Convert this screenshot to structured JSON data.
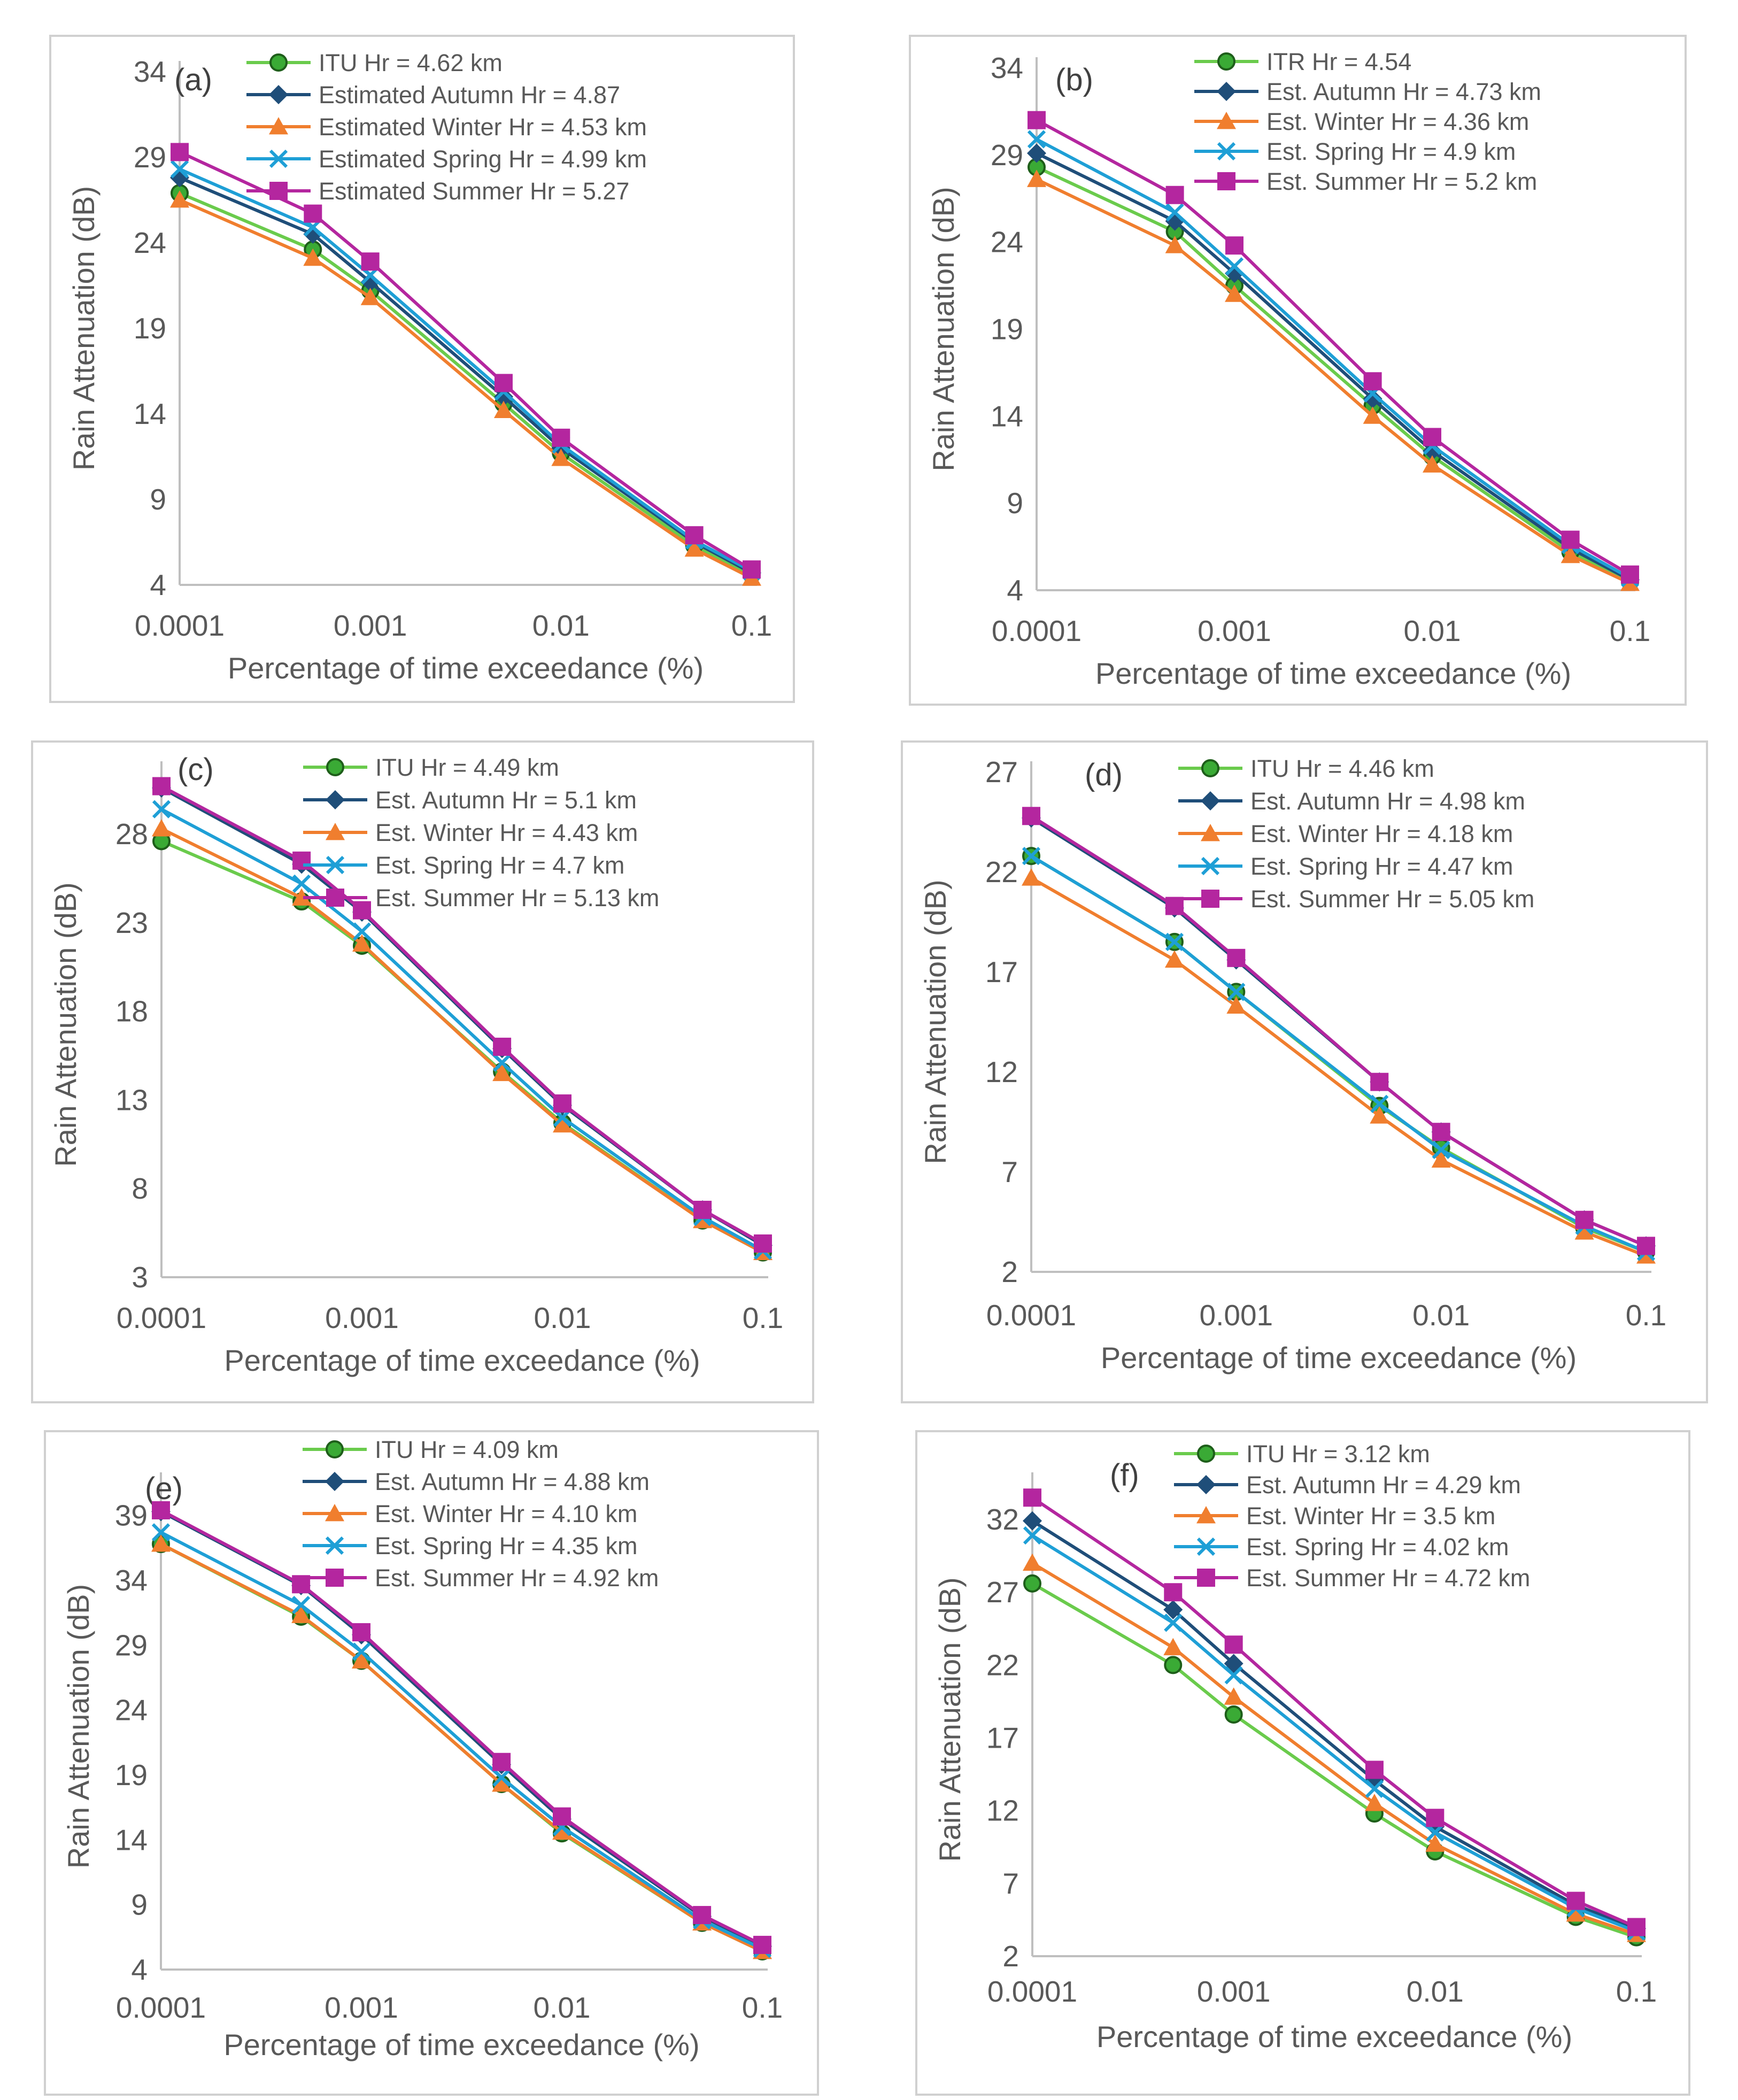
{
  "colors": {
    "ITU": "#6ACB4C",
    "Autumn": "#1F4E79",
    "Winter": "#F07E2E",
    "Spring": "#1E9FD6",
    "Summer": "#B4269F",
    "marker_itu_fill": "#3AAA35",
    "marker_itu_stroke": "#1E5E1A",
    "axis": "#bfbfbf",
    "text": "#595959"
  },
  "chart_data": [
    {
      "type": "line",
      "tag": "(a)",
      "xlabel": "Percentage of time exceedance (%)",
      "ylabel": "Rain Attenuation (dB)",
      "xscale": "log",
      "x": [
        0.0001,
        0.0005,
        0.001,
        0.005,
        0.01,
        0.05,
        0.1
      ],
      "xticks": [
        "0.0001",
        "0.001",
        "0.01",
        "0.1"
      ],
      "yticks": [
        "4",
        "9",
        "14",
        "19",
        "24",
        "29",
        "34"
      ],
      "ylim": [
        4,
        34
      ],
      "grid": false,
      "legend_position": "top-right",
      "series": [
        {
          "key": "ITU",
          "name": "ITU Hr = 4.62 km",
          "marker": "circle",
          "values": [
            26.9,
            23.6,
            21.2,
            14.6,
            11.7,
            6.3,
            4.6
          ]
        },
        {
          "key": "Autumn",
          "name": "Estimated Autumn Hr = 4.87",
          "marker": "diamond",
          "values": [
            27.8,
            24.5,
            21.7,
            15.0,
            12.0,
            6.5,
            4.7
          ]
        },
        {
          "key": "Winter",
          "name": "Estimated Winter Hr = 4.53 km",
          "marker": "triangle",
          "values": [
            26.5,
            23.1,
            20.8,
            14.2,
            11.4,
            6.1,
            4.4
          ]
        },
        {
          "key": "Spring",
          "name": "Estimated Spring Hr = 4.99 km",
          "marker": "x",
          "values": [
            28.3,
            24.9,
            22.1,
            15.3,
            12.2,
            6.6,
            4.8
          ]
        },
        {
          "key": "Summer",
          "name": "Estimated Summer Hr = 5.27",
          "marker": "square",
          "values": [
            29.3,
            25.7,
            22.9,
            15.8,
            12.6,
            6.9,
            4.9
          ]
        }
      ]
    },
    {
      "type": "line",
      "tag": "(b)",
      "xlabel": "Percentage of time exceedance (%)",
      "ylabel": "Rain Attenuation (dB)",
      "xscale": "log",
      "x": [
        0.0001,
        0.0005,
        0.001,
        0.005,
        0.01,
        0.05,
        0.1
      ],
      "xticks": [
        "0.0001",
        "0.001",
        "0.01",
        "0.1"
      ],
      "yticks": [
        "4",
        "9",
        "14",
        "19",
        "24",
        "29",
        "34"
      ],
      "ylim": [
        4,
        34
      ],
      "grid": false,
      "legend_position": "top-right",
      "series": [
        {
          "key": "ITU",
          "name": "ITR Hr = 4.54",
          "marker": "circle",
          "values": [
            28.3,
            24.6,
            21.5,
            14.6,
            11.7,
            6.2,
            4.5
          ]
        },
        {
          "key": "Autumn",
          "name": "Est. Autumn Hr = 4.73 km",
          "marker": "diamond",
          "values": [
            29.1,
            25.2,
            22.2,
            15.0,
            12.0,
            6.4,
            4.6
          ]
        },
        {
          "key": "Winter",
          "name": "Est. Winter Hr = 4.36 km",
          "marker": "triangle",
          "values": [
            27.6,
            23.8,
            21.0,
            14.0,
            11.2,
            6.0,
            4.4
          ]
        },
        {
          "key": "Spring",
          "name": "Est. Spring Hr = 4.9 km",
          "marker": "x",
          "values": [
            29.9,
            25.7,
            22.6,
            15.3,
            12.3,
            6.6,
            4.7
          ]
        },
        {
          "key": "Summer",
          "name": "Est. Summer Hr = 5.2 km",
          "marker": "square",
          "values": [
            31.0,
            26.7,
            23.8,
            16.0,
            12.8,
            6.9,
            4.9
          ]
        }
      ]
    },
    {
      "type": "line",
      "tag": "(c)",
      "xlabel": "Percentage of time exceedance (%)",
      "ylabel": "Rain Attenuation (dB)",
      "xscale": "log",
      "x": [
        0.0001,
        0.0005,
        0.001,
        0.005,
        0.01,
        0.05,
        0.1
      ],
      "xticks": [
        "0.0001",
        "0.001",
        "0.01",
        "0.1"
      ],
      "yticks": [
        "3",
        "8",
        "13",
        "18",
        "23",
        "28"
      ],
      "ylim": [
        3,
        31.5
      ],
      "grid": false,
      "legend_position": "top-right",
      "series": [
        {
          "key": "ITU",
          "name": "ITU Hr = 4.49 km",
          "marker": "circle",
          "values": [
            27.6,
            24.2,
            21.7,
            14.6,
            11.7,
            6.2,
            4.4
          ]
        },
        {
          "key": "Autumn",
          "name": "Est. Autumn Hr = 5.1 km",
          "marker": "diamond",
          "values": [
            30.6,
            26.3,
            23.6,
            15.9,
            12.7,
            6.8,
            4.8
          ]
        },
        {
          "key": "Winter",
          "name": "Est. Winter Hr = 4.43 km",
          "marker": "triangle",
          "values": [
            28.3,
            24.4,
            21.8,
            14.5,
            11.6,
            6.2,
            4.4
          ]
        },
        {
          "key": "Spring",
          "name": "Est. Spring Hr = 4.7 km",
          "marker": "x",
          "values": [
            29.4,
            25.2,
            22.5,
            15.1,
            12.0,
            6.4,
            4.5
          ]
        },
        {
          "key": "Summer",
          "name": "Est. Summer Hr = 5.13 km",
          "marker": "square",
          "values": [
            30.7,
            26.5,
            23.7,
            16.0,
            12.8,
            6.8,
            4.9
          ]
        }
      ]
    },
    {
      "type": "line",
      "tag": "(d)",
      "xlabel": "Percentage of time exceedance (%)",
      "ylabel": "Rain Attenuation (dB)",
      "xscale": "log",
      "x": [
        0.0001,
        0.0005,
        0.001,
        0.005,
        0.01,
        0.05,
        0.1
      ],
      "xticks": [
        "0.0001",
        "0.001",
        "0.01",
        "0.1"
      ],
      "yticks": [
        "2",
        "7",
        "12",
        "17",
        "22",
        "27"
      ],
      "ylim": [
        2,
        27
      ],
      "grid": false,
      "legend_position": "top-right",
      "series": [
        {
          "key": "ITU",
          "name": "ITU Hr = 4.46 km",
          "marker": "circle",
          "values": [
            22.8,
            18.5,
            16.0,
            10.3,
            8.2,
            4.2,
            3.0
          ]
        },
        {
          "key": "Autumn",
          "name": "Est. Autumn Hr = 4.98 km",
          "marker": "diamond",
          "values": [
            24.7,
            20.2,
            17.6,
            11.5,
            9.0,
            4.6,
            3.3
          ]
        },
        {
          "key": "Winter",
          "name": "Est. Winter Hr = 4.18 km",
          "marker": "triangle",
          "values": [
            21.7,
            17.6,
            15.3,
            9.8,
            7.6,
            4.0,
            2.8
          ]
        },
        {
          "key": "Spring",
          "name": "Est. Spring Hr = 4.47 km",
          "marker": "x",
          "values": [
            22.8,
            18.5,
            16.0,
            10.4,
            8.1,
            4.3,
            3.0
          ]
        },
        {
          "key": "Summer",
          "name": "Est. Summer Hr = 5.05 km",
          "marker": "square",
          "values": [
            24.8,
            20.3,
            17.7,
            11.5,
            9.0,
            4.6,
            3.3
          ]
        }
      ]
    },
    {
      "type": "line",
      "tag": "(e)",
      "xlabel": "Percentage of time exceedance (%)",
      "ylabel": "Rain Attenuation (dB)",
      "xscale": "log",
      "x": [
        0.0001,
        0.0005,
        0.001,
        0.005,
        0.01,
        0.05,
        0.1
      ],
      "xticks": [
        "0.0001",
        "0.001",
        "0.01",
        "0.1"
      ],
      "yticks": [
        "4",
        "9",
        "14",
        "19",
        "24",
        "29",
        "34",
        "39"
      ],
      "ylim": [
        4,
        41.5
      ],
      "grid": false,
      "legend_position": "top-right",
      "series": [
        {
          "key": "ITU",
          "name": "ITU Hr = 4.09 km",
          "marker": "circle",
          "values": [
            36.8,
            31.2,
            27.8,
            18.3,
            14.5,
            7.6,
            5.4
          ]
        },
        {
          "key": "Autumn",
          "name": "Est. Autumn Hr = 4.88 km",
          "marker": "diamond",
          "values": [
            39.3,
            33.6,
            29.8,
            19.8,
            15.6,
            8.1,
            5.8
          ]
        },
        {
          "key": "Winter",
          "name": "Est. Winter Hr = 4.10 km",
          "marker": "triangle",
          "values": [
            36.8,
            31.3,
            27.8,
            18.3,
            14.6,
            7.6,
            5.4
          ]
        },
        {
          "key": "Spring",
          "name": "Est. Spring Hr = 4.35 km",
          "marker": "x",
          "values": [
            37.7,
            32.1,
            28.5,
            18.8,
            15.0,
            7.8,
            5.6
          ]
        },
        {
          "key": "Summer",
          "name": "Est. Summer Hr = 4.92 km",
          "marker": "square",
          "values": [
            39.4,
            33.7,
            30.0,
            20.0,
            15.8,
            8.2,
            5.9
          ]
        }
      ]
    },
    {
      "type": "line",
      "tag": "(f)",
      "xlabel": "Percentage of time exceedance (%)",
      "ylabel": "Rain Attenuation (dB)",
      "xscale": "log",
      "x": [
        0.0001,
        0.0005,
        0.001,
        0.005,
        0.01,
        0.05,
        0.1
      ],
      "xticks": [
        "0.0001",
        "0.001",
        "0.01",
        "0.1"
      ],
      "yticks": [
        "2",
        "7",
        "12",
        "17",
        "22",
        "27",
        "32"
      ],
      "ylim": [
        2,
        34.5
      ],
      "grid": false,
      "legend_position": "top-right",
      "series": [
        {
          "key": "ITU",
          "name": "ITU Hr = 3.12 km",
          "marker": "circle",
          "values": [
            27.6,
            22.0,
            18.6,
            11.8,
            9.2,
            4.7,
            3.3
          ]
        },
        {
          "key": "Autumn",
          "name": "Est. Autumn Hr = 4.29 km",
          "marker": "diamond",
          "values": [
            31.9,
            25.8,
            22.1,
            14.1,
            10.9,
            5.5,
            3.9
          ]
        },
        {
          "key": "Winter",
          "name": "Est. Winter Hr = 3.5 km",
          "marker": "triangle",
          "values": [
            29.0,
            23.2,
            19.8,
            12.5,
            9.7,
            4.9,
            3.5
          ]
        },
        {
          "key": "Spring",
          "name": "Est. Spring Hr = 4.02 km",
          "marker": "x",
          "values": [
            30.9,
            24.9,
            21.3,
            13.5,
            10.5,
            5.3,
            3.7
          ]
        },
        {
          "key": "Summer",
          "name": "Est. Summer Hr = 4.72 km",
          "marker": "square",
          "values": [
            33.5,
            27.0,
            23.4,
            14.8,
            11.5,
            5.8,
            4.0
          ]
        }
      ]
    }
  ]
}
